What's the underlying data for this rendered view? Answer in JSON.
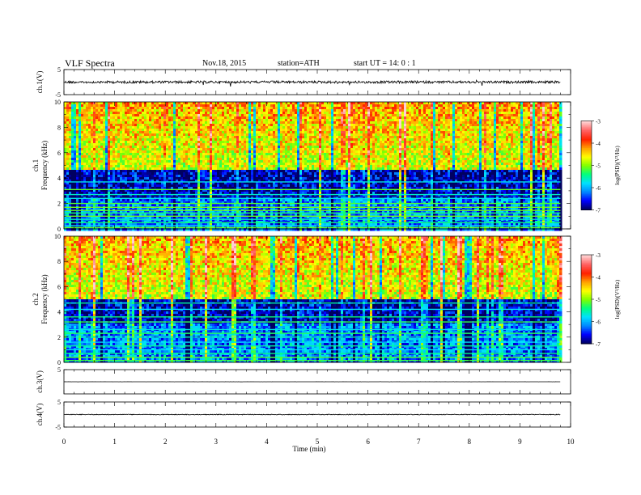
{
  "header": {
    "title": "VLF  Spectra",
    "date": "Nov.18, 2015",
    "station": "station=ATH",
    "start": "start  UT =   14: 0  : 1"
  },
  "chart_data": [
    {
      "type": "line",
      "name": "ch.1 waveform",
      "ylabel": "ch.1(V)",
      "ylim": [
        -5,
        5
      ],
      "y_ticks": [
        "5",
        "-5"
      ],
      "xlim": [
        0,
        10
      ],
      "baseline": 0,
      "noise_amplitude": 0.5
    },
    {
      "type": "heatmap",
      "ylabel": [
        "ch.1",
        "Frequency  (kHz)"
      ],
      "y_ticks": [
        "10",
        "8",
        "6",
        "4",
        "2",
        "0"
      ],
      "ylim": [
        0,
        10
      ],
      "xlim": [
        0,
        9.8
      ],
      "colorbar": {
        "label": "log(PSD)(V²/Hz)",
        "ticks": [
          "-3",
          "-4",
          "-5",
          "-6",
          "-7"
        ],
        "range": [
          -7,
          -3
        ],
        "colors": [
          "#000060",
          "#0000ff",
          "#0088ff",
          "#00e0ff",
          "#00ff80",
          "#80ff00",
          "#ffff00",
          "#ffa000",
          "#ff2000",
          "#ff6060",
          "#ffd0d0"
        ]
      },
      "quiet_band_khz": [
        2.5,
        4.7
      ],
      "line_khz": [
        0.1,
        0.25,
        0.5,
        0.75,
        1.0,
        1.25,
        1.45,
        1.7,
        2.0,
        2.4,
        2.7,
        3.1,
        3.7
      ]
    },
    {
      "type": "heatmap",
      "ylabel": [
        "ch.2",
        "Frequency  (kHz)"
      ],
      "y_ticks": [
        "10",
        "8",
        "6",
        "4",
        "2",
        "0"
      ],
      "ylim": [
        0,
        10
      ],
      "xlim": [
        0,
        9.8
      ],
      "colorbar": {
        "label": "log(PSD)(V²/Hz)",
        "ticks": [
          "-3",
          "-4",
          "-5",
          "-6",
          "-7"
        ],
        "range": [
          -7,
          -3
        ],
        "colors": [
          "#000060",
          "#0000ff",
          "#0088ff",
          "#00e0ff",
          "#00ff80",
          "#80ff00",
          "#ffff00",
          "#ffa000",
          "#ff2000",
          "#ff6060",
          "#ffd0d0"
        ]
      },
      "quiet_band_khz": [
        3.0,
        5.0
      ],
      "line_khz": [
        0.15,
        0.4,
        0.7,
        1.0,
        1.3,
        1.6,
        2.0,
        2.3,
        2.6,
        3.2,
        3.6,
        4.2,
        4.7
      ]
    },
    {
      "type": "line",
      "name": "ch.3 waveform",
      "ylabel": "ch.3(V)",
      "y_ticks": [
        "5"
      ],
      "ylim": [
        -5,
        5
      ],
      "xlim": [
        0,
        10
      ],
      "baseline": 0,
      "noise_amplitude": 0.02
    },
    {
      "type": "line",
      "name": "ch.4 waveform",
      "ylabel": "ch.4(V)",
      "y_ticks": [
        "5",
        "-5"
      ],
      "ylim": [
        -5,
        5
      ],
      "xlim": [
        0,
        10
      ],
      "baseline": 0,
      "noise_amplitude": 0.15
    }
  ],
  "x_axis": {
    "label": "Time  (min)",
    "ticks": [
      "0",
      "1",
      "2",
      "3",
      "4",
      "5",
      "6",
      "7",
      "8",
      "9",
      "10"
    ],
    "range": [
      0,
      10
    ]
  }
}
